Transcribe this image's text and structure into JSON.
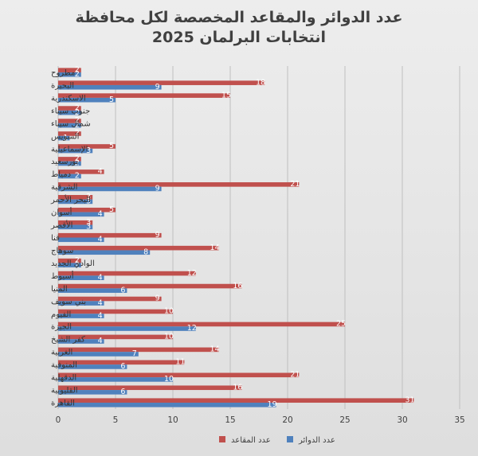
{
  "chart_data": {
    "type": "bar",
    "orientation": "horizontal",
    "title": [
      "عدد الدوائر والمقاعد المخصصة لكل محافظة",
      "انتخابات البرلمان 2025"
    ],
    "xlabel": "",
    "ylabel": "",
    "xlim": [
      0,
      35
    ],
    "ticks": [
      "0",
      "5",
      "10",
      "15",
      "20",
      "25",
      "30",
      "35"
    ],
    "grid": true,
    "legend": "bottom-right",
    "categories": [
      "مطروح",
      "البحيرة",
      "الاسكندرية",
      "جنوب سيناء",
      "شمال سيناء",
      "السويس",
      "الإسماعيلية",
      "بورسعيد",
      "دمياط",
      "الشرقية",
      "البحر الأحمر",
      "أسوان",
      "الأقصر",
      "قنا",
      "سوهاج",
      "الوادي الجديد",
      "أسيوط",
      "المنيا",
      "بني سويف",
      "الفيوم",
      "الجيزة",
      "كفر الشيخ",
      "الغربية",
      "المنوفية",
      "الدقهلية",
      "القليوبية",
      "القاهرة"
    ],
    "series": [
      {
        "name": "عدد المقاعد",
        "color": "#c0504d",
        "values": [
          2,
          18,
          15,
          2,
          2,
          2,
          5,
          2,
          4,
          21,
          3,
          5,
          3,
          9,
          14,
          2,
          12,
          16,
          9,
          10,
          25,
          10,
          14,
          11,
          21,
          16,
          31
        ]
      },
      {
        "name": "عدد الدوائر",
        "color": "#4f81bd",
        "values": [
          2,
          9,
          5,
          2,
          2,
          1,
          3,
          2,
          2,
          9,
          3,
          4,
          3,
          4,
          8,
          2,
          4,
          6,
          4,
          4,
          12,
          4,
          7,
          6,
          10,
          6,
          19
        ]
      }
    ]
  }
}
